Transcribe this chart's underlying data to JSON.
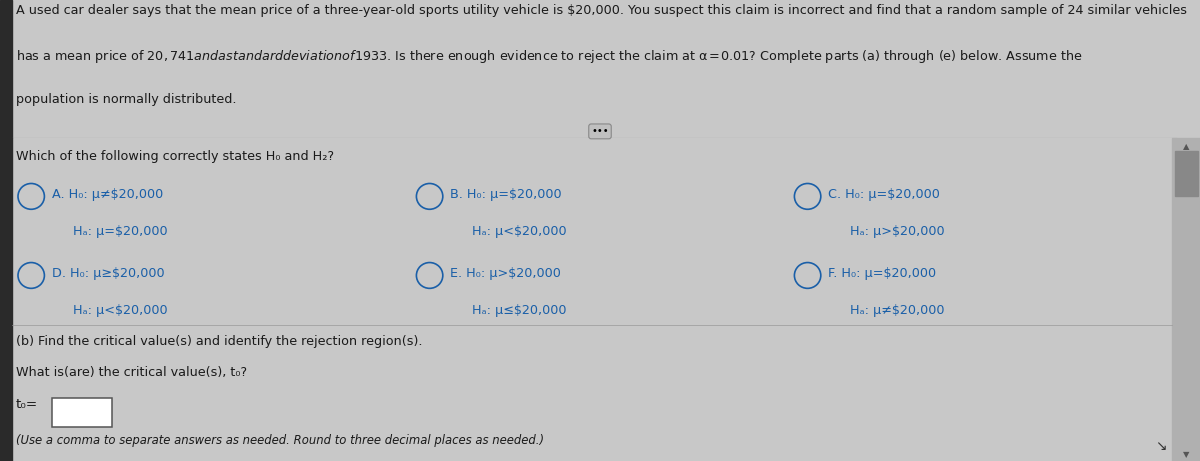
{
  "bg_color": "#c8c8c8",
  "top_bg": "#c8c8c8",
  "bottom_bg": "#d2d2d2",
  "title_line1": "A used car dealer says that the mean price of a three-year-old sports utility vehicle is $20,000. You suspect this claim is incorrect and find that a random sample of 24 similar vehicles",
  "title_line2": "has a mean price of $20,741 and a standard deviation of $1933. Is there enough evidence to reject the claim at α = 0.01? Complete parts (a) through (e) below. Assume the",
  "title_line3": "population is normally distributed.",
  "question_a": "Which of the following correctly states H₀ and H₂?",
  "options": [
    {
      "label": "A.",
      "line1": "H₀: μ≠$20,000",
      "line2": "Hₐ: μ=$20,000"
    },
    {
      "label": "B.",
      "line1": "H₀: μ=$20,000",
      "line2": "Hₐ: μ<$20,000"
    },
    {
      "label": "C.",
      "line1": "H₀: μ=$20,000",
      "line2": "Hₐ: μ>$20,000"
    },
    {
      "label": "D.",
      "line1": "H₀: μ≥$20,000",
      "line2": "Hₐ: μ<$20,000"
    },
    {
      "label": "E.",
      "line1": "H₀: μ>$20,000",
      "line2": "Hₐ: μ≤$20,000"
    },
    {
      "label": "F.",
      "line1": "H₀: μ=$20,000",
      "line2": "Hₐ: μ≠$20,000"
    }
  ],
  "part_b_line1": "(b) Find the critical value(s) and identify the rejection region(s).",
  "part_b_line2": "What is(are) the critical value(s), t₀?",
  "t0_label": "t₀=",
  "footnote": "(Use a comma to separate answers as needed. Round to three decimal places as needed.)",
  "font_size_title": 9.2,
  "font_size_body": 9.2,
  "text_color": "#1a1a1a",
  "left_bar_color": "#2a2a2a",
  "scrollbar_bg": "#b0b0b0",
  "scrollbar_thumb": "#888888",
  "divider_color": "#999999",
  "radio_color": "#1a5fa8",
  "option_text_color": "#1a5fa8"
}
